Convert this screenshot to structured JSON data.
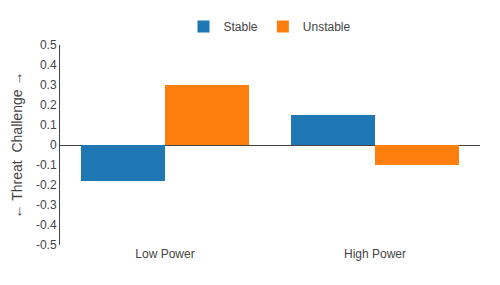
{
  "chart_data": {
    "type": "bar",
    "categories": [
      "Low Power",
      "High Power"
    ],
    "series": [
      {
        "name": "Stable",
        "values": [
          -0.18,
          0.15
        ]
      },
      {
        "name": "Unstable",
        "values": [
          0.3,
          -0.1
        ]
      }
    ],
    "ylabel": "← Threat  Challenge →",
    "ylim": [
      -0.5,
      0.5
    ],
    "yticks": [
      -0.5,
      -0.4,
      -0.3,
      -0.2,
      -0.1,
      0,
      0.1,
      0.2,
      0.3,
      0.4,
      0.5
    ],
    "grid": false,
    "legend": "top"
  }
}
